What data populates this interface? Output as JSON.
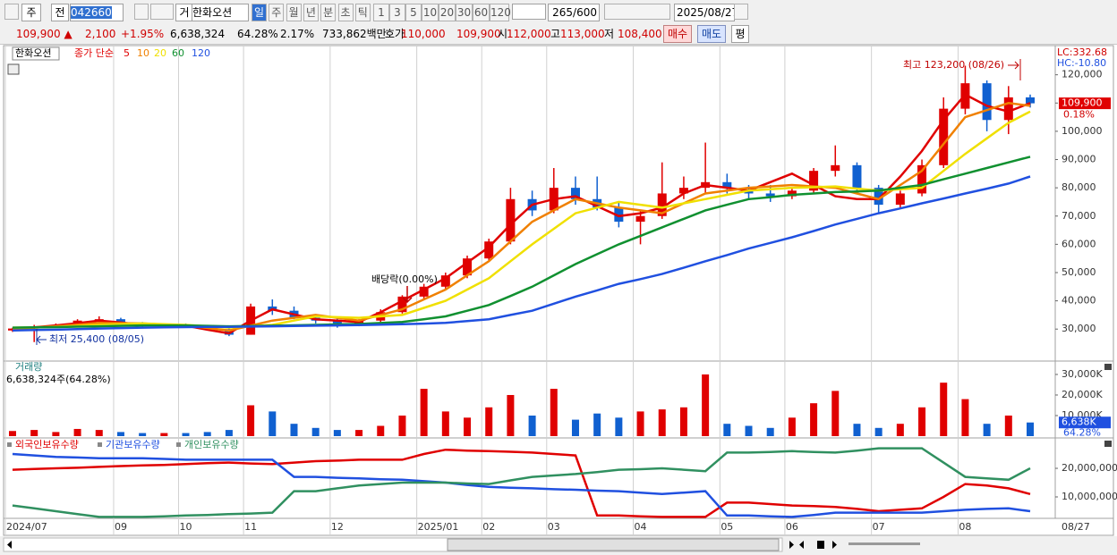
{
  "toolbar": {
    "market": "주",
    "prev": "전",
    "code": "042660",
    "type": "거",
    "name": "한화오션",
    "periods": [
      "일",
      "주",
      "월",
      "년",
      "분",
      "초",
      "틱"
    ],
    "intervals": [
      "1",
      "3",
      "5",
      "10",
      "20",
      "30",
      "60",
      "120"
    ],
    "count": "265/600",
    "date": "2025/08/27"
  },
  "quote": {
    "price": "109,900 ▲",
    "change": "2,100",
    "rate": "+1.95%",
    "volume": "6,638,324",
    "vol_rate": "64.28%",
    "turnover": "2.17%",
    "amount": "733,862백만",
    "ask_label": "호가",
    "ask": "110,000",
    "bid": "109,900",
    "open_label": "시",
    "open": "112,000",
    "high_label": "고",
    "high": "113,000",
    "low_label": "저",
    "low": "108,400",
    "buy": "매수",
    "sell": "매도",
    "avg": "평"
  },
  "chart_data": [
    {
      "type": "candlestick",
      "title": "한화오션",
      "ma_label": "종가 단순",
      "categories": [
        "2024/07",
        null,
        null,
        null,
        null,
        "09",
        null,
        null,
        "10",
        null,
        null,
        "11",
        null,
        null,
        null,
        "12",
        null,
        null,
        null,
        "2025/01",
        null,
        null,
        "02",
        null,
        null,
        "03",
        null,
        null,
        null,
        "04",
        null,
        null,
        null,
        "05",
        null,
        null,
        "06",
        null,
        null,
        null,
        "07",
        null,
        null,
        null,
        "08",
        null,
        null,
        null
      ],
      "open": [
        29500,
        30200,
        31000,
        31500,
        33000,
        33500,
        31500,
        31000,
        31500,
        31000,
        30000,
        28000,
        38000,
        36500,
        34000,
        33000,
        32000,
        33000,
        36000,
        41500,
        45000,
        49000,
        55000,
        61000,
        76000,
        72000,
        80000,
        76000,
        73000,
        68000,
        70000,
        78000,
        80000,
        82000,
        79000,
        78000,
        77000,
        79000,
        86000,
        88000,
        80000,
        74000,
        78000,
        88000,
        108000,
        117000,
        104000,
        112000
      ],
      "high": [
        30500,
        31500,
        32000,
        33500,
        34500,
        34000,
        32500,
        32000,
        32000,
        31500,
        30500,
        39000,
        40500,
        38000,
        35000,
        34000,
        33500,
        37000,
        42000,
        46000,
        50000,
        56000,
        62000,
        80000,
        79000,
        87000,
        84000,
        84000,
        75000,
        72000,
        89000,
        84000,
        96000,
        85000,
        81000,
        81000,
        80000,
        87000,
        95000,
        89000,
        81000,
        79000,
        90000,
        112000,
        123200,
        118000,
        116000,
        113000
      ],
      "low": [
        29000,
        25400,
        30500,
        31000,
        32000,
        31000,
        30500,
        30500,
        30500,
        29500,
        27500,
        28000,
        35000,
        33500,
        32000,
        30500,
        31000,
        32500,
        35500,
        40500,
        44000,
        48000,
        54000,
        60000,
        70000,
        71000,
        74000,
        72000,
        66000,
        60000,
        69000,
        76000,
        78000,
        78000,
        76000,
        75000,
        76000,
        78000,
        84000,
        78000,
        71000,
        73000,
        77000,
        87000,
        106000,
        100000,
        99000,
        108400
      ],
      "close": [
        30200,
        31000,
        31500,
        33000,
        33500,
        31500,
        31000,
        31500,
        31000,
        30000,
        28000,
        38000,
        36500,
        34000,
        33000,
        32000,
        33000,
        36000,
        41500,
        45000,
        49000,
        55000,
        61000,
        76000,
        72000,
        80000,
        76000,
        73000,
        68000,
        70000,
        78000,
        80000,
        82000,
        80000,
        78000,
        77000,
        79000,
        86000,
        88000,
        80000,
        74000,
        78000,
        88000,
        108000,
        117000,
        104000,
        112000,
        109900
      ],
      "up_color": "#e00000",
      "down_color": "#1060d0",
      "series": [
        {
          "name": "5",
          "color": "#e00000",
          "values": [
            30000,
            30600,
            31300,
            32100,
            33000,
            32300,
            31500,
            31300,
            31200,
            29800,
            28500,
            33000,
            37000,
            35200,
            33500,
            33000,
            32500,
            36000,
            40000,
            44000,
            48000,
            53500,
            59000,
            67000,
            74000,
            76000,
            77000,
            73500,
            70000,
            71000,
            73000,
            78000,
            81000,
            80000,
            79000,
            82000,
            85000,
            81000,
            77000,
            76000,
            76000,
            84000,
            93000,
            104000,
            113000,
            109000,
            107000,
            110000
          ]
        },
        {
          "name": "10",
          "color": "#f08000",
          "values": [
            30000,
            30500,
            31000,
            31600,
            32200,
            32100,
            32000,
            31600,
            31300,
            30400,
            29500,
            31200,
            33000,
            34000,
            35000,
            34000,
            33000,
            35000,
            37000,
            40500,
            44000,
            49000,
            54000,
            61000,
            68000,
            72000,
            76000,
            74500,
            73000,
            72000,
            71000,
            74500,
            78000,
            79000,
            80000,
            80500,
            81000,
            80500,
            80000,
            78000,
            76000,
            81000,
            86000,
            95500,
            105000,
            107500,
            110000,
            109000
          ]
        },
        {
          "name": "20",
          "color": "#f0e000",
          "values": [
            30500,
            30600,
            30800,
            31100,
            31500,
            31700,
            32000,
            31700,
            31500,
            31000,
            30500,
            31000,
            31500,
            33000,
            34500,
            34200,
            34000,
            34500,
            35000,
            37500,
            40000,
            44000,
            48000,
            54000,
            60000,
            65500,
            71000,
            73000,
            75000,
            74000,
            73000,
            74500,
            76000,
            77500,
            79000,
            79500,
            80000,
            80200,
            80500,
            79700,
            79000,
            79500,
            80000,
            86000,
            92000,
            97500,
            103000,
            107000
          ]
        },
        {
          "name": "60",
          "color": "#109030",
          "values": [
            30500,
            30600,
            30700,
            30850,
            31000,
            31150,
            31300,
            31300,
            31300,
            31150,
            31000,
            31100,
            31200,
            31350,
            31500,
            31650,
            31800,
            32150,
            32500,
            33500,
            34500,
            36500,
            38500,
            41700,
            45000,
            49000,
            53000,
            56500,
            60000,
            63000,
            66000,
            69000,
            72000,
            74000,
            76000,
            76700,
            77500,
            78000,
            78500,
            78700,
            79000,
            80000,
            81000,
            83000,
            85000,
            87000,
            89000,
            91000
          ]
        },
        {
          "name": "120",
          "color": "#2050e0",
          "values": [
            29500,
            29650,
            29800,
            30000,
            30200,
            30350,
            30500,
            30600,
            30700,
            30750,
            30800,
            30900,
            31000,
            31100,
            31200,
            31300,
            31400,
            31550,
            31700,
            31950,
            32200,
            32850,
            33500,
            35000,
            36500,
            39000,
            41500,
            43700,
            46000,
            47700,
            49500,
            51700,
            54000,
            56200,
            58500,
            60500,
            62500,
            64700,
            67000,
            69000,
            71000,
            72700,
            74500,
            76200,
            78000,
            79700,
            81500,
            84000
          ]
        }
      ],
      "ylim": [
        19000,
        128750
      ],
      "yticks": [
        {
          "value": 30000,
          "label": "30,000"
        },
        {
          "value": 40000,
          "label": "40,000"
        },
        {
          "value": 50000,
          "label": "50,000"
        },
        {
          "value": 60000,
          "label": "60,000"
        },
        {
          "value": 70000,
          "label": "70,000"
        },
        {
          "value": 80000,
          "label": "80,000"
        },
        {
          "value": 90000,
          "label": "90,000"
        },
        {
          "value": 100000,
          "label": "100,000"
        },
        {
          "value": 110000,
          "label": "110,000"
        },
        {
          "value": 120000,
          "label": "120,000"
        }
      ],
      "lc_label": "LC:332.68",
      "hc_label": "HC:-10.80",
      "price_tag": {
        "value": 109900,
        "label": "109,900"
      },
      "change_tag": "0.18%",
      "high_annotation": "최고 123,200 (08/26)",
      "low_annotation": "최저 25,400 (08/05)",
      "event_annotation": "배당락(0.00%)",
      "last_date": "08/27"
    },
    {
      "type": "bar",
      "title": "거래량",
      "subtitle": "6,638,324주(64.28%)",
      "values": [
        2500,
        3000,
        2000,
        3500,
        3000,
        2000,
        1500,
        1500,
        1500,
        2000,
        3000,
        15000,
        12000,
        6000,
        4000,
        3000,
        3000,
        5000,
        10000,
        23000,
        12000,
        9000,
        14000,
        20000,
        10000,
        23000,
        8000,
        11000,
        9000,
        12000,
        13000,
        14000,
        30000,
        6000,
        5000,
        4000,
        9000,
        16000,
        22000,
        6000,
        4000,
        6000,
        14000,
        26000,
        18000,
        6000,
        10000,
        6638
      ],
      "ylim": [
        0,
        33900
      ],
      "yticks": [
        {
          "value": 10000,
          "label": "10,000K"
        },
        {
          "value": 20000,
          "label": "20,000K"
        },
        {
          "value": 30000,
          "label": "30,000K"
        }
      ],
      "value_tag": {
        "value": 6638,
        "label": "6,638K"
      },
      "rate_tag": "64.28%"
    },
    {
      "type": "line",
      "series": [
        {
          "name": "외국인보유수량",
          "color": "#e00000",
          "values": [
            19500000,
            19800000,
            20000000,
            20200000,
            20500000,
            20800000,
            21000000,
            21200000,
            21500000,
            21800000,
            22000000,
            21700000,
            21500000,
            22000000,
            22500000,
            22700000,
            23000000,
            23000000,
            23000000,
            25000000,
            26500000,
            26200000,
            26000000,
            25800000,
            25500000,
            25000000,
            24500000,
            3500000,
            3500000,
            3200000,
            3000000,
            3000000,
            3000000,
            8000000,
            8000000,
            7500000,
            7000000,
            6800000,
            6500000,
            5800000,
            5000000,
            5500000,
            6000000,
            10000000,
            14500000,
            14000000,
            13000000,
            11000000
          ]
        },
        {
          "name": "기관보유수량",
          "color": "#2050e0",
          "values": [
            25000000,
            24500000,
            24000000,
            23800000,
            23500000,
            23500000,
            23500000,
            23300000,
            23000000,
            23000000,
            23000000,
            23000000,
            23000000,
            17000000,
            17000000,
            16700000,
            16500000,
            16200000,
            16000000,
            15500000,
            15000000,
            14200000,
            13500000,
            13200000,
            13000000,
            12700000,
            12500000,
            12200000,
            12000000,
            11500000,
            11000000,
            11500000,
            12000000,
            3500000,
            3500000,
            3200000,
            3000000,
            3700000,
            4500000,
            4500000,
            4500000,
            4500000,
            4500000,
            5000000,
            5500000,
            5800000,
            6000000,
            5000000
          ]
        },
        {
          "name": "개인보유수량",
          "color": "#309060",
          "values": [
            7000000,
            6000000,
            5000000,
            4000000,
            3000000,
            3000000,
            3000000,
            3200000,
            3500000,
            3700000,
            4000000,
            4200000,
            4500000,
            12000000,
            12000000,
            13000000,
            14000000,
            14500000,
            15000000,
            15000000,
            15000000,
            14700000,
            14500000,
            15800000,
            17000000,
            17500000,
            18000000,
            18700000,
            19500000,
            19700000,
            20000000,
            19500000,
            19000000,
            25500000,
            25500000,
            25700000,
            26000000,
            25700000,
            25500000,
            26200000,
            27000000,
            27000000,
            27000000,
            22000000,
            17000000,
            16500000,
            16000000,
            20000000
          ]
        }
      ],
      "ylim": [
        2500000,
        29700000
      ],
      "yticks": [
        {
          "value": 10000000,
          "label": "10,000,000"
        },
        {
          "value": 20000000,
          "label": "20,000,000"
        }
      ]
    }
  ]
}
